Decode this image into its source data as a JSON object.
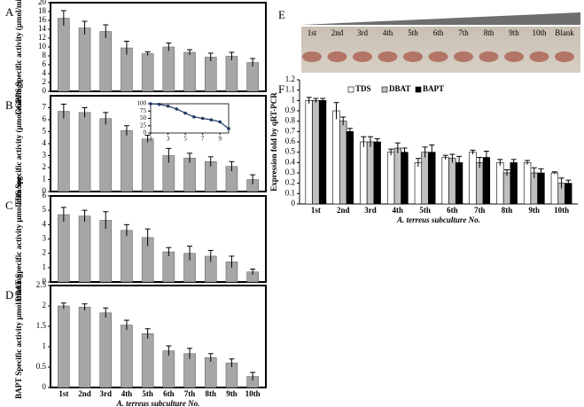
{
  "chart_data": [
    {
      "type": "bar",
      "label": "A",
      "ylabel": "GGPPS Specific activity (µmol/min/mg)",
      "color": "#a6a6a6",
      "categories": [
        null,
        null,
        null,
        null,
        null,
        null,
        null,
        null,
        null,
        null
      ],
      "values": [
        16.5,
        14.3,
        13.5,
        9.8,
        8.5,
        10,
        8.8,
        7.7,
        7.9,
        6.5
      ],
      "errors": [
        1.7,
        1.5,
        1.5,
        1.5,
        0.4,
        0.9,
        0.6,
        0.9,
        0.9,
        0.9
      ],
      "ylim": [
        0,
        20
      ],
      "yticks": [
        0,
        2,
        4,
        6,
        8,
        10,
        12,
        14,
        16,
        18,
        20
      ]
    },
    {
      "type": "bar",
      "label": "B",
      "ylabel": "TDS Specific activity (µmol/min/mg)",
      "color": "#a6a6a6",
      "categories": [
        null,
        null,
        null,
        null,
        null,
        null,
        null,
        null,
        null,
        null
      ],
      "values": [
        6.7,
        6.6,
        6.1,
        5.1,
        4.4,
        3.0,
        2.8,
        2.5,
        2.1,
        1.0
      ],
      "errors": [
        0.6,
        0.4,
        0.5,
        0.4,
        0.3,
        0.6,
        0.4,
        0.4,
        0.4,
        0.4
      ],
      "ylim": [
        0,
        8
      ],
      "yticks": [
        0,
        1,
        2,
        3,
        4,
        5,
        6,
        7
      ]
    },
    {
      "type": "line",
      "color": "#1f3864",
      "x": [
        1,
        2,
        3,
        4,
        5,
        6,
        7,
        8,
        9,
        10
      ],
      "values": [
        100,
        98,
        92,
        82,
        68,
        55,
        50,
        45,
        38,
        15
      ],
      "xlim": [
        1,
        10
      ],
      "xticks": [
        1,
        3,
        5,
        7,
        9
      ],
      "ylim": [
        0,
        100
      ],
      "yticks": [
        0,
        25,
        50,
        75,
        100
      ]
    },
    {
      "type": "bar",
      "label": "C",
      "ylabel": "DBAT Specific activity µmol/min/mg",
      "color": "#a6a6a6",
      "categories": [
        null,
        null,
        null,
        null,
        null,
        null,
        null,
        null,
        null,
        null
      ],
      "values": [
        4.7,
        4.6,
        4.3,
        3.6,
        3.1,
        2.1,
        2.0,
        1.8,
        1.4,
        0.7
      ],
      "errors": [
        0.5,
        0.4,
        0.6,
        0.4,
        0.6,
        0.3,
        0.5,
        0.4,
        0.4,
        0.2
      ],
      "ylim": [
        0,
        6
      ],
      "yticks": [
        0,
        1,
        2,
        3,
        4,
        5,
        6
      ]
    },
    {
      "type": "bar",
      "label": "D",
      "ylabel": "BAPT Specific activity µmol/min/mg",
      "color": "#a6a6a6",
      "xlabel": "A. terreus subculture No.",
      "categories": [
        "1st",
        "2nd",
        "3rd",
        "4th",
        "5th",
        "6th",
        "7th",
        "8th",
        "9th",
        "10th"
      ],
      "values": [
        2.0,
        1.97,
        1.83,
        1.53,
        1.32,
        0.9,
        0.83,
        0.73,
        0.6,
        0.27
      ],
      "errors": [
        0.07,
        0.08,
        0.12,
        0.12,
        0.12,
        0.12,
        0.13,
        0.1,
        0.1,
        0.1
      ],
      "ylim": [
        0,
        2.5
      ],
      "yticks": [
        0,
        0.5,
        1,
        1.5,
        2,
        2.5
      ]
    },
    {
      "type": "grouped-bar",
      "label": "F",
      "ylabel": "Expression fold by qRT-PCR",
      "xlabel": "A. terreus subculture No.",
      "categories": [
        "1st",
        "2nd",
        "3rd",
        "4th",
        "5th",
        "6th",
        "7th",
        "8th",
        "9th",
        "10th"
      ],
      "series": [
        {
          "name": "TDS",
          "color": "#ffffff",
          "values": [
            1.0,
            0.9,
            0.6,
            0.5,
            0.4,
            0.45,
            0.5,
            0.4,
            0.4,
            0.3
          ],
          "errors": [
            0.03,
            0.08,
            0.05,
            0.03,
            0.04,
            0.02,
            0.02,
            0.03,
            0.02,
            0.01
          ]
        },
        {
          "name": "DBAT",
          "color": "#bfbfbf",
          "values": [
            1.0,
            0.8,
            0.6,
            0.54,
            0.5,
            0.44,
            0.4,
            0.3,
            0.3,
            0.2
          ],
          "errors": [
            0.02,
            0.04,
            0.05,
            0.05,
            0.05,
            0.04,
            0.05,
            0.03,
            0.05,
            0.05
          ]
        },
        {
          "name": "BAPT",
          "color": "#000000",
          "values": [
            1.0,
            0.7,
            0.6,
            0.5,
            0.5,
            0.4,
            0.45,
            0.4,
            0.3,
            0.2
          ],
          "errors": [
            0.02,
            0.03,
            0.03,
            0.04,
            0.07,
            0.06,
            0.06,
            0.03,
            0.04,
            0.03
          ]
        }
      ],
      "ylim": [
        0,
        1.2
      ],
      "yticks": [
        0,
        0.1,
        0.2,
        0.3,
        0.4,
        0.5,
        0.6,
        0.7,
        0.8,
        0.9,
        1,
        1.1,
        1.2
      ]
    }
  ],
  "panel_e": {
    "label": "E",
    "lanes": [
      "1st",
      "2nd",
      "3rd",
      "4th",
      "5th",
      "6th",
      "7th",
      "8th",
      "9th",
      "10th",
      "Blank"
    ]
  }
}
